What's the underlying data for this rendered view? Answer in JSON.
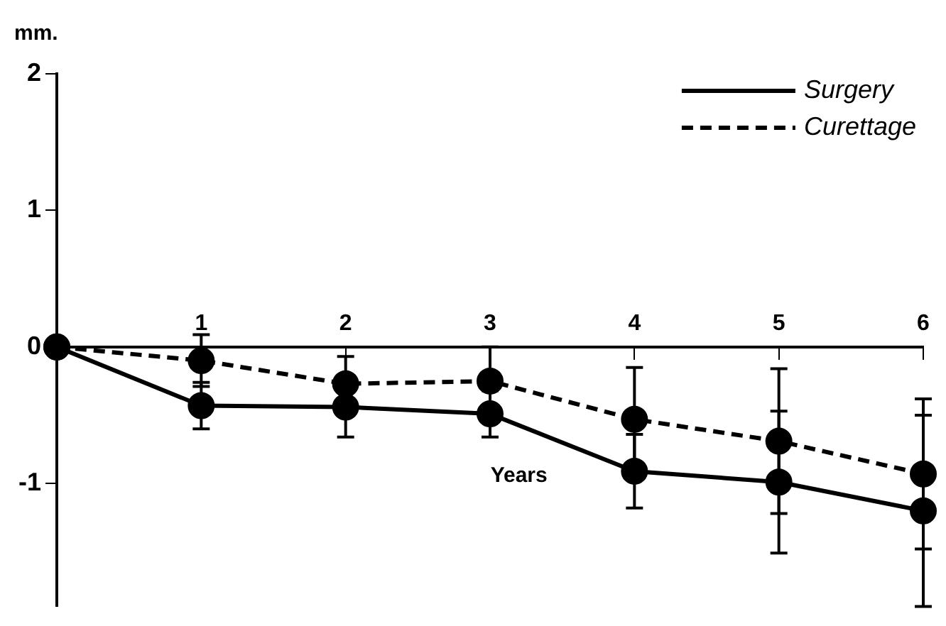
{
  "chart_data": {
    "type": "line",
    "ylabel": "mm.",
    "xlabel": "Years",
    "x": [
      0,
      1,
      2,
      3,
      4,
      5,
      6
    ],
    "xlim": [
      0,
      6
    ],
    "xticks": [
      1,
      2,
      3,
      4,
      5,
      6
    ],
    "ylim": [
      -1.9,
      2
    ],
    "yticks": [
      -1,
      0,
      1,
      2
    ],
    "grid": false,
    "legend": "top right",
    "marker": "circle",
    "series": [
      {
        "name": "Surgery",
        "color": "#000000",
        "line_style": "solid",
        "values": [
          0,
          -0.43,
          -0.44,
          -0.49,
          -0.91,
          -0.99,
          -1.2
        ],
        "errors": [
          null,
          0.17,
          0.22,
          0.17,
          0.27,
          0.52,
          0.7
        ]
      },
      {
        "name": "Curettage",
        "color": "#000000",
        "line_style": "dashed",
        "values": [
          0,
          -0.1,
          -0.27,
          -0.25,
          -0.53,
          -0.69,
          -0.93
        ],
        "errors": [
          null,
          0.19,
          0.2,
          0.25,
          0.38,
          0.53,
          0.55
        ]
      }
    ]
  }
}
